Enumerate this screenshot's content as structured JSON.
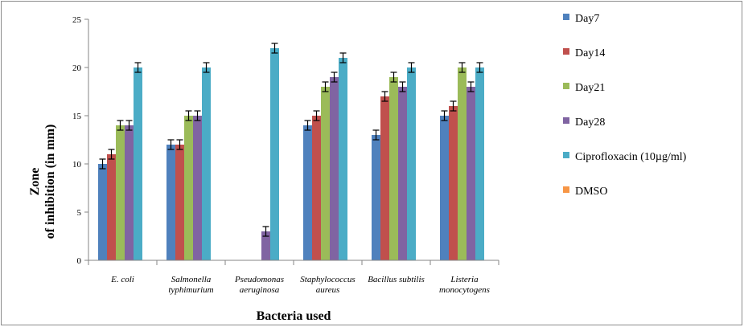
{
  "chart_data": {
    "type": "bar",
    "title": "",
    "xlabel": "Bacteria used",
    "ylabel_lines": [
      "Zone",
      "of inhibition (in mm)"
    ],
    "ylim": [
      0,
      25
    ],
    "yticks": [
      0,
      5,
      10,
      15,
      20,
      25
    ],
    "grid": false,
    "legend_position": "right",
    "categories": [
      [
        "E.   coli"
      ],
      [
        "Salmonella",
        "typhimurium"
      ],
      [
        "Pseudomonas",
        "aeruginosa"
      ],
      [
        "Staphylococcus",
        "aureus"
      ],
      [
        "Bacillus subtilis"
      ],
      [
        "Listeria",
        "monocytogens"
      ]
    ],
    "error_bar": 0.5,
    "series": [
      {
        "name": "Day7",
        "color": "#4f81bd",
        "values": [
          10,
          12,
          null,
          14,
          13,
          15
        ]
      },
      {
        "name": "Day14",
        "color": "#c0504d",
        "values": [
          11,
          12,
          null,
          15,
          17,
          16
        ]
      },
      {
        "name": "Day21",
        "color": "#9bbb59",
        "values": [
          14,
          15,
          null,
          18,
          19,
          20
        ]
      },
      {
        "name": "Day28",
        "color": "#8064a2",
        "values": [
          14,
          15,
          3,
          19,
          18,
          18
        ]
      },
      {
        "name": "Ciprofloxacin (10µg/ml)",
        "color": "#4bacc6",
        "values": [
          20,
          20,
          22,
          21,
          20,
          20
        ]
      },
      {
        "name": "DMSO",
        "color": "#f79646",
        "values": [
          null,
          null,
          null,
          null,
          null,
          null
        ]
      }
    ]
  }
}
